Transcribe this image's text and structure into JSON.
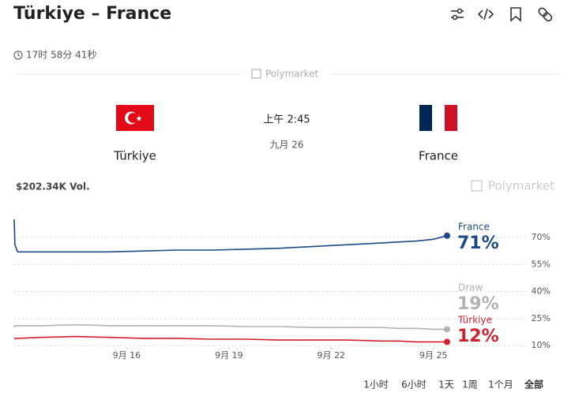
{
  "header": {
    "title": "Türkiye – France",
    "countdown": "17时 58分 41秒",
    "brand": "Polymarket"
  },
  "match": {
    "home": "Türkiye",
    "away": "France",
    "time": "上午 2:45",
    "date": "九月 26"
  },
  "volume": "$202.34K Vol.",
  "watermark": "Polymarket",
  "ranges": [
    "1小时",
    "6小时",
    "1天",
    "1周",
    "1个月",
    "全部"
  ],
  "chart_data": {
    "type": "line",
    "x": [
      12.7,
      12.72,
      12.8,
      13.5,
      14.5,
      15.5,
      16.5,
      17.5,
      18.5,
      19.5,
      20.5,
      21.5,
      22.5,
      23.5,
      24.0,
      24.5,
      25.0,
      25.4
    ],
    "series": [
      {
        "name": "France",
        "color": "#1c4a87",
        "values": [
          80,
          66,
          62,
          62,
          62,
          62,
          62.5,
          63,
          63,
          63.5,
          64,
          65,
          66,
          67,
          67.5,
          68,
          69,
          71
        ],
        "value_labels": [
          null,
          null,
          null,
          null,
          null,
          null,
          null,
          null,
          null,
          null,
          null,
          null,
          null,
          null,
          null,
          null,
          null,
          "71%"
        ]
      },
      {
        "name": "Draw",
        "color": "#b3b3b3",
        "values": [
          20,
          21,
          21,
          21,
          21.5,
          21,
          21,
          21,
          21,
          20.5,
          20.5,
          20,
          20,
          20,
          19.5,
          19.5,
          19,
          19
        ],
        "value_labels": [
          null,
          null,
          null,
          null,
          null,
          null,
          null,
          null,
          null,
          null,
          null,
          null,
          null,
          null,
          null,
          null,
          null,
          "19%"
        ]
      },
      {
        "name": "Türkiye",
        "color": "#d11f2c",
        "values": [
          14,
          14,
          14,
          14.5,
          15,
          14.5,
          14,
          14,
          13.5,
          13.5,
          13,
          13,
          13,
          12.5,
          12.5,
          12,
          12,
          12
        ],
        "value_labels": [
          null,
          null,
          null,
          null,
          null,
          null,
          null,
          null,
          null,
          null,
          null,
          null,
          null,
          null,
          null,
          null,
          null,
          "12%"
        ]
      }
    ],
    "xlim": [
      12.7,
      25.4
    ],
    "xticks": [
      {
        "value": 16,
        "label": "9月 16"
      },
      {
        "value": 19,
        "label": "9月 19"
      },
      {
        "value": 22,
        "label": "9月 22"
      },
      {
        "value": 25,
        "label": "9月 25"
      }
    ],
    "ylim": [
      5,
      85
    ],
    "yticks": [
      {
        "value": 10,
        "label": "10%"
      },
      {
        "value": 25,
        "label": "25%"
      },
      {
        "value": 40,
        "label": "40%"
      },
      {
        "value": 55,
        "label": "55%"
      },
      {
        "value": 70,
        "label": "70%"
      }
    ],
    "grid": true
  }
}
